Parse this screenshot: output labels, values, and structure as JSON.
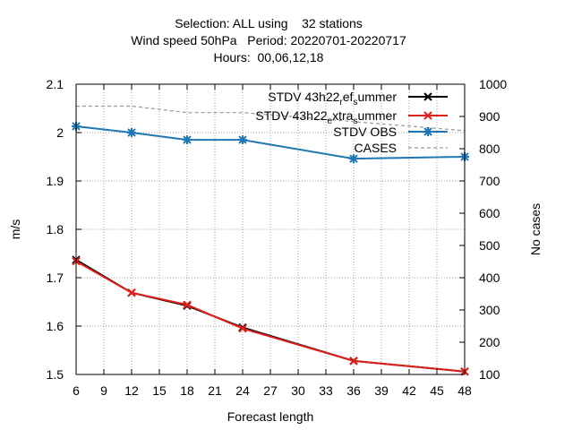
{
  "chart_data": {
    "type": "line",
    "title_lines": [
      "Selection: ALL using    32 stations",
      "Wind speed 50hPa   Period: 20220701-20220717",
      "Hours:  00,06,12,18"
    ],
    "xlabel": "Forecast length",
    "ylabel": "m/s",
    "y2label": "No cases",
    "xlim": [
      6,
      48
    ],
    "ylim": [
      1.5,
      2.1
    ],
    "y2lim": [
      100,
      1000
    ],
    "x_ticks": [
      6,
      9,
      12,
      15,
      18,
      21,
      24,
      27,
      30,
      33,
      36,
      39,
      42,
      45,
      48
    ],
    "y_ticks": [
      1.5,
      1.6,
      1.7,
      1.8,
      1.9,
      2.0,
      2.1
    ],
    "y_tick_labels": [
      "1.5",
      "1.6",
      "1.7",
      "1.8",
      "1.9",
      "2",
      "2.1"
    ],
    "y2_ticks": [
      100,
      200,
      300,
      400,
      500,
      600,
      700,
      800,
      900,
      1000
    ],
    "grid": true,
    "legend_position": "top-right",
    "series": [
      {
        "name": "STDV 43h22_ref_summer",
        "legend_parts": [
          "STDV 43h22",
          "r",
          "ef",
          "s",
          "ummer"
        ],
        "axis": "y",
        "color": "#000000",
        "marker": "x",
        "x": [
          6,
          12,
          18,
          24,
          36,
          48
        ],
        "values": [
          1.737,
          1.669,
          1.642,
          1.597,
          1.528,
          1.506
        ]
      },
      {
        "name": "STDV 43h22_extra_summer",
        "legend_parts": [
          "STDV 43h22",
          "e",
          "xtra",
          "s",
          "ummer"
        ],
        "axis": "y",
        "color": "#e0201b",
        "marker": "x",
        "x": [
          6,
          12,
          18,
          24,
          36,
          48
        ],
        "values": [
          1.734,
          1.669,
          1.644,
          1.595,
          1.528,
          1.506
        ]
      },
      {
        "name": "STDV OBS",
        "axis": "y",
        "color": "#1f77b4",
        "marker": "star",
        "x": [
          6,
          12,
          18,
          24,
          36,
          48
        ],
        "values": [
          2.013,
          2.0,
          1.985,
          1.985,
          1.946,
          1.95
        ]
      },
      {
        "name": "CASES",
        "axis": "y2",
        "color": "#999999",
        "dashed": true,
        "x": [
          6,
          12,
          18,
          24,
          36,
          48
        ],
        "values": [
          932,
          932,
          912,
          912,
          884,
          856
        ]
      }
    ]
  }
}
